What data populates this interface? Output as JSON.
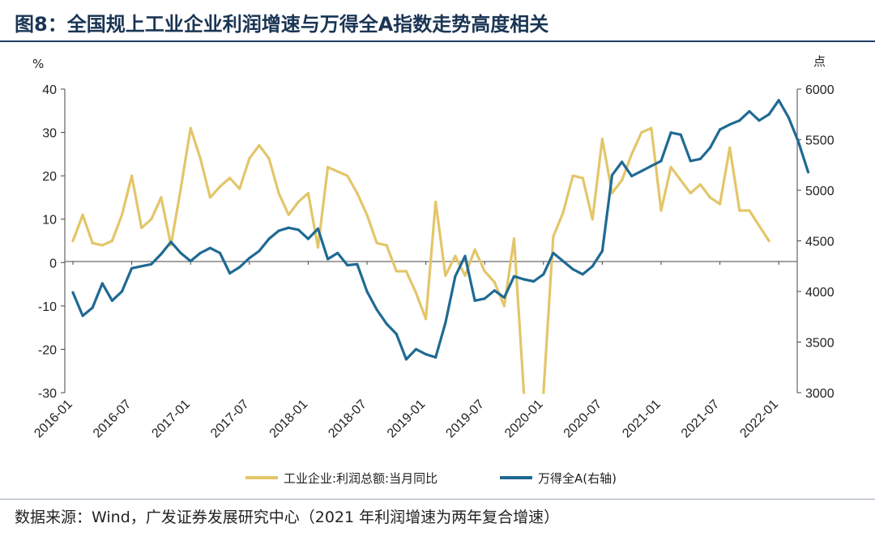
{
  "title": "图8：全国规上工业企业利润增速与万得全A指数走势高度相关",
  "source": "数据来源：Wind，广发证券发展研究中心（2021 年利润增速为两年复合增速）",
  "colors": {
    "profit": "#E3C66A",
    "index": "#1F6A93",
    "title": "#1a3554"
  },
  "chart_data": {
    "type": "line",
    "left_axis": {
      "unit": "%",
      "ylim": [
        -30,
        40
      ],
      "ticks": [
        "40",
        "30",
        "20",
        "10",
        "0",
        "-10",
        "-20",
        "-30"
      ]
    },
    "right_axis": {
      "unit": "点",
      "ylim": [
        3000,
        6000
      ],
      "ticks": [
        "6000",
        "5500",
        "5000",
        "4500",
        "4000",
        "3500",
        "3000"
      ]
    },
    "x_labels": [
      "2016-01",
      "2016-07",
      "2017-01",
      "2017-07",
      "2018-01",
      "2018-07",
      "2019-01",
      "2019-07",
      "2020-01",
      "2020-07",
      "2021-01",
      "2021-07",
      "2022-01"
    ],
    "series": [
      {
        "name": "工业企业:利润总额:当月同比",
        "axis": "left",
        "color": "#E3C66A",
        "values": [
          5,
          11,
          4.5,
          4,
          5,
          11,
          20,
          8,
          10,
          15,
          4,
          17,
          31,
          24,
          15,
          17.5,
          19.5,
          17,
          24,
          27,
          24,
          16,
          11,
          14,
          16,
          3.5,
          22,
          21,
          20,
          16,
          11,
          4.5,
          4,
          -2,
          -2,
          -7,
          -13,
          14,
          -3,
          1.5,
          -3,
          3,
          -2,
          -4.5,
          -10,
          5.5,
          -30,
          null,
          -30,
          6,
          11.5,
          20,
          19.5,
          10,
          28.5,
          16,
          19,
          25,
          30,
          31,
          12,
          22,
          19,
          16,
          18,
          15,
          13.5,
          26.5,
          12,
          12,
          8.5,
          5
        ]
      },
      {
        "name": "万得全A(右轴)",
        "axis": "right",
        "color": "#1F6A93",
        "values": [
          3990,
          3760,
          3840,
          4080,
          3910,
          4000,
          4230,
          4250,
          4270,
          4370,
          4490,
          4380,
          4300,
          4380,
          4430,
          4380,
          4180,
          4240,
          4330,
          4400,
          4520,
          4600,
          4630,
          4610,
          4520,
          4620,
          4320,
          4380,
          4260,
          4270,
          4000,
          3820,
          3680,
          3580,
          3330,
          3430,
          3380,
          3350,
          3690,
          4150,
          4350,
          3910,
          3930,
          4010,
          3940,
          4150,
          4120,
          4100,
          4170,
          4380,
          4300,
          4220,
          4170,
          4250,
          4400,
          5150,
          5280,
          5140,
          5190,
          5240,
          5290,
          5570,
          5550,
          5290,
          5310,
          5420,
          5600,
          5650,
          5690,
          5780,
          5690,
          5750,
          5890,
          5720,
          5480,
          5180
        ]
      }
    ]
  }
}
